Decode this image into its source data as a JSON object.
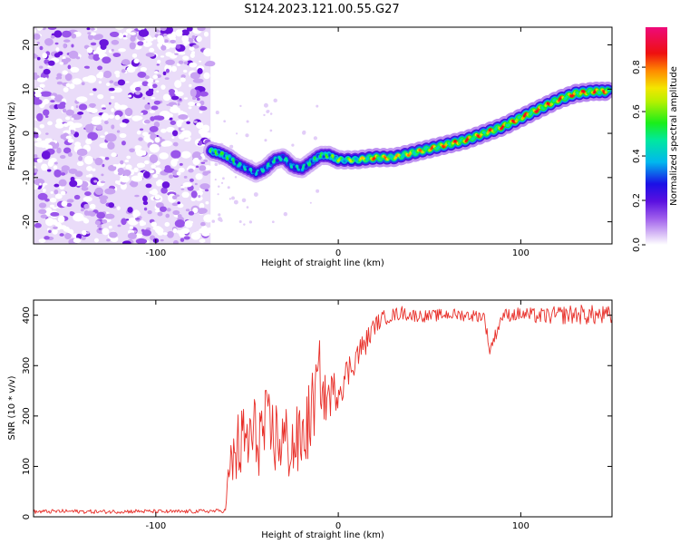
{
  "title": "S124.2023.121.00.55.G27",
  "colors": {
    "snr_line": "#e8302a",
    "spectrogram_palette": [
      "#ffffff",
      "#e8d2fb",
      "#b383ee",
      "#7a1de0",
      "#1b10e6",
      "#00d5ee",
      "#1aee1a",
      "#f3e600",
      "#ff8a00",
      "#ee1010",
      "#ee0a7a"
    ]
  },
  "chart_data": [
    {
      "type": "heatmap",
      "title": "S124.2023.121.00.55.G27",
      "xlabel": "Height of straight line (km)",
      "ylabel": "Frequency (Hz)",
      "xlim": [
        -167,
        150
      ],
      "ylim": [
        -25,
        24
      ],
      "xticks": [
        -100,
        0,
        100
      ],
      "xtick_labels": [
        "-100",
        "0",
        "100"
      ],
      "yticks": [
        -20,
        -10,
        0,
        10,
        20
      ],
      "ytick_labels": [
        "-20",
        "-10",
        "0",
        "10",
        "20"
      ],
      "colorbar": {
        "label": "Normalized spectral amplitude",
        "range": [
          0,
          0.98
        ],
        "ticks": [
          0.0,
          0.2,
          0.4,
          0.6,
          0.8
        ],
        "tick_labels": [
          "0.0",
          "0.2",
          "0.4",
          "0.6",
          "0.8"
        ]
      },
      "noise_region_x": [
        -167,
        -70
      ],
      "ridge": {
        "x": [
          -70,
          -65,
          -60,
          -55,
          -50,
          -45,
          -40,
          -35,
          -30,
          -25,
          -20,
          -15,
          -10,
          -5,
          0,
          10,
          20,
          30,
          40,
          50,
          60,
          70,
          80,
          90,
          100,
          110,
          120,
          130,
          140,
          148
        ],
        "y": [
          -4,
          -4.5,
          -5.5,
          -7,
          -8,
          -9,
          -8,
          -6,
          -5.5,
          -7.5,
          -8,
          -6.5,
          -5,
          -5,
          -6,
          -6,
          -5.5,
          -5.5,
          -4.5,
          -3.5,
          -2.5,
          -1.5,
          0,
          1.5,
          3.5,
          5.5,
          7.5,
          9,
          9.5,
          9.5
        ],
        "amplitude": [
          0.62,
          0.6,
          0.58,
          0.52,
          0.48,
          0.45,
          0.5,
          0.52,
          0.5,
          0.48,
          0.5,
          0.55,
          0.58,
          0.62,
          0.66,
          0.72,
          0.88,
          0.8,
          0.82,
          0.86,
          0.88,
          0.9,
          0.88,
          0.9,
          0.92,
          0.92,
          0.9,
          0.92,
          0.9,
          0.88
        ]
      }
    },
    {
      "type": "line",
      "xlabel": "Height of straight line (km)",
      "ylabel": "SNR (10 * v/v)",
      "xlim": [
        -167,
        150
      ],
      "ylim": [
        0,
        430
      ],
      "xticks": [
        -100,
        0,
        100
      ],
      "xtick_labels": [
        "-100",
        "0",
        "100"
      ],
      "yticks": [
        0,
        100,
        200,
        300,
        400
      ],
      "ytick_labels": [
        "0",
        "100",
        "200",
        "300",
        "400"
      ],
      "series": [
        {
          "x": [
            -167,
            -150,
            -130,
            -110,
            -90,
            -75,
            -62,
            -60,
            -57,
            -54,
            -50,
            -45,
            -40,
            -35,
            -30,
            -25,
            -20,
            -15,
            -12,
            -10,
            -8,
            -5,
            0,
            5,
            10,
            15,
            20,
            25,
            30,
            35,
            40,
            50,
            60,
            70,
            80,
            83,
            90,
            100,
            110,
            120,
            130,
            140,
            150
          ],
          "y": [
            10,
            11,
            10,
            11,
            10,
            11,
            12,
            80,
            120,
            140,
            150,
            160,
            170,
            160,
            150,
            140,
            150,
            200,
            250,
            290,
            230,
            240,
            255,
            285,
            320,
            345,
            380,
            395,
            400,
            405,
            400,
            398,
            402,
            400,
            398,
            330,
            400,
            402,
            398,
            400,
            402,
            400,
            398
          ],
          "spread": [
            4,
            4,
            4,
            4,
            4,
            4,
            4,
            50,
            70,
            80,
            80,
            85,
            85,
            80,
            80,
            75,
            75,
            80,
            70,
            65,
            55,
            45,
            40,
            35,
            30,
            25,
            18,
            15,
            14,
            14,
            13,
            12,
            12,
            12,
            12,
            12,
            13,
            14,
            16,
            18,
            20,
            20,
            20
          ]
        }
      ]
    }
  ]
}
